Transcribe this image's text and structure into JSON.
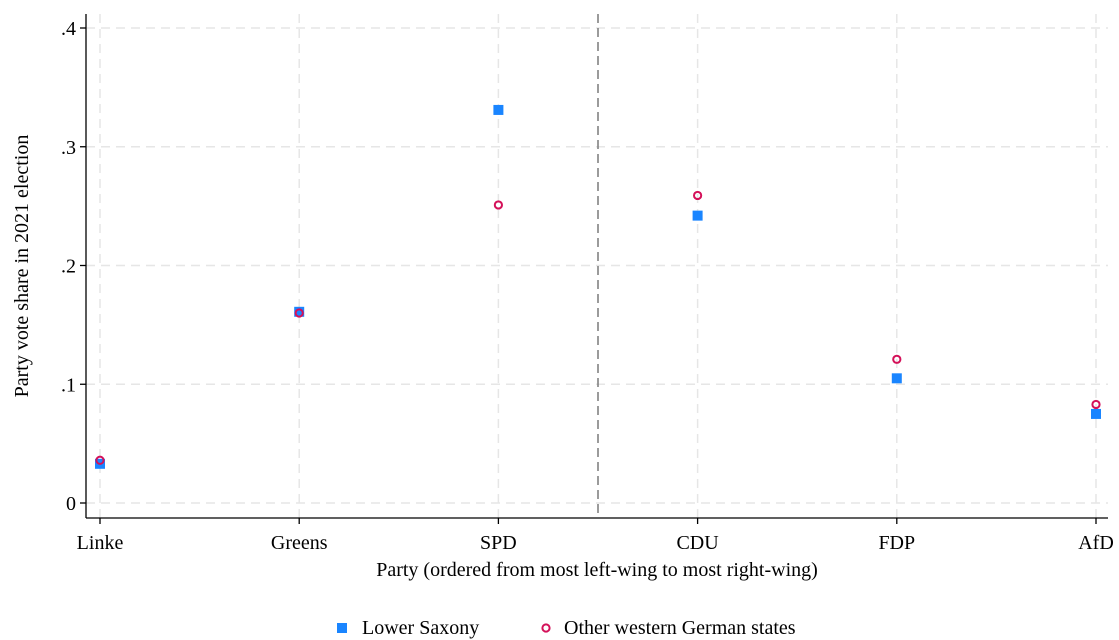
{
  "chart_data": {
    "type": "scatter",
    "categories": [
      "Linke",
      "Greens",
      "SPD",
      "CDU",
      "FDP",
      "AfD"
    ],
    "series": [
      {
        "name": "Lower Saxony",
        "marker": "square",
        "color": "#1a85ff",
        "values": [
          0.033,
          0.161,
          0.331,
          0.242,
          0.105,
          0.075
        ]
      },
      {
        "name": "Other western German states",
        "marker": "hollow-circle",
        "color": "#d41159",
        "values": [
          0.036,
          0.16,
          0.251,
          0.259,
          0.121,
          0.083
        ]
      }
    ],
    "xlabel": "Party (ordered from most left-wing to most right-wing)",
    "ylabel": "Party vote share in 2021 election",
    "ylim": [
      0,
      0.4
    ],
    "yticks": [
      0,
      0.1,
      0.2,
      0.3,
      0.4
    ],
    "ytick_labels": [
      "0",
      ".1",
      ".2",
      ".3",
      ".4"
    ],
    "reference_line": {
      "x_between": [
        "SPD",
        "CDU"
      ],
      "style": "dashed",
      "color": "#7a7a7a"
    },
    "grid": true,
    "legend_position": "bottom-center"
  }
}
